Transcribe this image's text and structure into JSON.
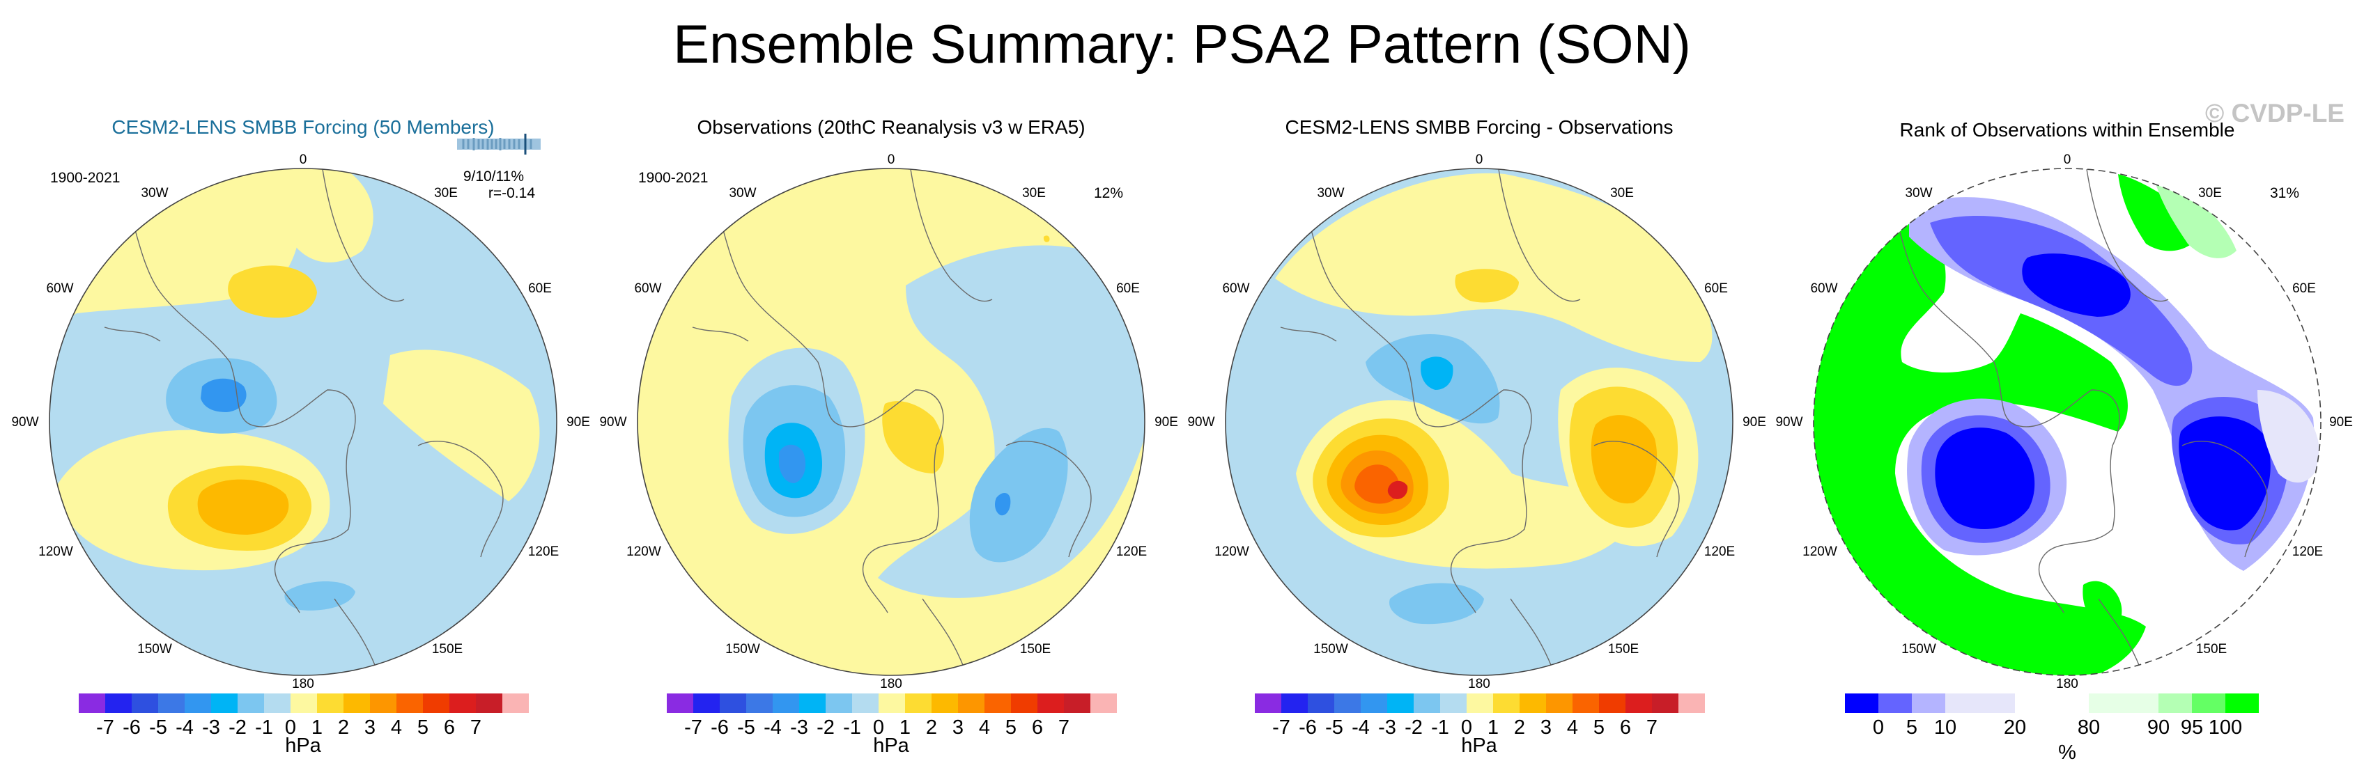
{
  "figure": {
    "title": "Ensemble Summary: PSA2 Pattern (SON)",
    "watermark": "© CVDP-LE"
  },
  "colors": {
    "title_accent": "#1a6f9a",
    "hpa_scale": [
      "#8a2be2",
      "#2323f0",
      "#2e50e0",
      "#3c78e6",
      "#3296f0",
      "#00b4f5",
      "#7cc6f0",
      "#b4dcf0",
      "#fdf8a0",
      "#fddc32",
      "#fdb900",
      "#fd9600",
      "#fa6400",
      "#f03c00",
      "#dc1e1e",
      "#c81e28",
      "#fab4b4"
    ],
    "rank_scale": [
      "#0000ff",
      "#6464ff",
      "#b4b4ff",
      "#e6e6fa",
      "#ffffff",
      "#e6ffe6",
      "#b4ffb4",
      "#64ff64",
      "#00ff00"
    ]
  },
  "chart_data": [
    {
      "type": "polar-contour-map",
      "title": "CESM2-LENS SMBB Forcing (50 Members)",
      "period": "1900-2021",
      "stats_line1": "9/10/11%",
      "stats_line2": "r=-0.14",
      "ensemble_ticks": "member-tick-strip",
      "longitude_labels": [
        "0",
        "30E",
        "60E",
        "90E",
        "120E",
        "150E",
        "180",
        "150W",
        "120W",
        "90W",
        "60W",
        "30W"
      ],
      "colorbar": {
        "units": "hPa",
        "levels": [
          -7,
          -6,
          -5,
          -4,
          -3,
          -2,
          -1,
          0,
          1,
          2,
          3,
          4,
          5,
          6,
          7
        ],
        "tick_labels": [
          "-7",
          "-6",
          "-5",
          "-4",
          "-3",
          "-2",
          "-1",
          "0",
          "1",
          "2",
          "3",
          "4",
          "5",
          "6",
          "7"
        ]
      },
      "anomaly_features": [
        {
          "name": "low-pressure-center",
          "location": "Antarctic Peninsula",
          "min_hPa": -3
        },
        {
          "name": "high-pressure-center",
          "location": "Pacific sector near 130W",
          "max_hPa": 3
        },
        {
          "name": "high-pressure-center",
          "location": "South Atlantic near 15W",
          "max_hPa": 2
        },
        {
          "name": "low-pressure-center",
          "location": "Ross Sea near 170W",
          "min_hPa": -1
        }
      ]
    },
    {
      "type": "polar-contour-map",
      "title": "Observations (20thC Reanalysis v3 w ERA5)",
      "period": "1900-2021",
      "stats_line1": "12%",
      "longitude_labels": [
        "0",
        "30E",
        "60E",
        "90E",
        "120E",
        "150E",
        "180",
        "150W",
        "120W",
        "90W",
        "60W",
        "30W"
      ],
      "colorbar": {
        "units": "hPa",
        "levels": [
          -7,
          -6,
          -5,
          -4,
          -3,
          -2,
          -1,
          0,
          1,
          2,
          3,
          4,
          5,
          6,
          7
        ],
        "tick_labels": [
          "-7",
          "-6",
          "-5",
          "-4",
          "-3",
          "-2",
          "-1",
          "0",
          "1",
          "2",
          "3",
          "4",
          "5",
          "6",
          "7"
        ]
      },
      "anomaly_features": [
        {
          "name": "low-pressure-center",
          "location": "Amundsen-Bellingshausen Sea near 90W",
          "min_hPa": -4
        },
        {
          "name": "low-pressure-center",
          "location": "Indian Ocean near 130E",
          "min_hPa": -3
        },
        {
          "name": "high-pressure-center",
          "location": "East Antarctica",
          "max_hPa": 2
        }
      ]
    },
    {
      "type": "polar-contour-map",
      "title": "CESM2-LENS SMBB Forcing - Observations",
      "longitude_labels": [
        "0",
        "30E",
        "60E",
        "90E",
        "120E",
        "150E",
        "180",
        "150W",
        "120W",
        "90W",
        "60W",
        "30W"
      ],
      "colorbar": {
        "units": "hPa",
        "levels": [
          -7,
          -6,
          -5,
          -4,
          -3,
          -2,
          -1,
          0,
          1,
          2,
          3,
          4,
          5,
          6,
          7
        ],
        "tick_labels": [
          "-7",
          "-6",
          "-5",
          "-4",
          "-3",
          "-2",
          "-1",
          "0",
          "1",
          "2",
          "3",
          "4",
          "5",
          "6",
          "7"
        ]
      },
      "anomaly_features": [
        {
          "name": "high-pressure-center",
          "location": "Amundsen-Bellingshausen Sea near 100W",
          "max_hPa": 6
        },
        {
          "name": "high-pressure-center",
          "location": "Indian Ocean near 110E",
          "max_hPa": 3
        },
        {
          "name": "low-pressure-center",
          "location": "Antarctic Peninsula",
          "min_hPa": -3
        },
        {
          "name": "high-pressure-center",
          "location": "South Atlantic",
          "max_hPa": 2
        },
        {
          "name": "low-pressure-center",
          "location": "Ross Sea",
          "min_hPa": -2
        }
      ]
    },
    {
      "type": "polar-rank-map",
      "title": "Rank of Observations within Ensemble",
      "stats_line1": "31%",
      "longitude_labels": [
        "0",
        "30E",
        "60E",
        "90E",
        "120E",
        "150E",
        "180",
        "150W",
        "120W",
        "90W",
        "60W",
        "30W"
      ],
      "colorbar": {
        "units": "%",
        "levels": [
          0,
          5,
          10,
          20,
          80,
          90,
          95,
          100
        ],
        "tick_labels": [
          "0",
          "5",
          "10",
          "20",
          "80",
          "90",
          "95",
          "100"
        ]
      },
      "rank_features": [
        {
          "name": "low-rank-region",
          "location": "Amundsen-Bellingshausen Sea",
          "rank_pct": "0-5"
        },
        {
          "name": "low-rank-region",
          "location": "Indian Ocean near 100E",
          "rank_pct": "0-5"
        },
        {
          "name": "low-rank-region",
          "location": "South Atlantic near 20E",
          "rank_pct": "0-5"
        },
        {
          "name": "high-rank-region",
          "location": "Pacific and Antarctic Peninsula",
          "rank_pct": "95-100"
        }
      ]
    }
  ]
}
